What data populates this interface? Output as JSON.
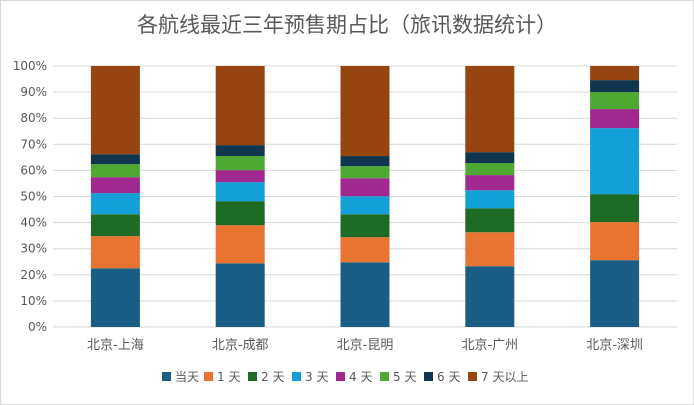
{
  "chart_data": {
    "type": "bar",
    "stacked": "percent",
    "title": "各航线最近三年预售期占比（旅讯数据统计）",
    "xlabel": "",
    "ylabel": "",
    "ylim": [
      0,
      100
    ],
    "yticks": [
      "0%",
      "10%",
      "20%",
      "30%",
      "40%",
      "50%",
      "60%",
      "70%",
      "80%",
      "90%",
      "100%"
    ],
    "grid": true,
    "legend_position": "bottom",
    "categories": [
      "北京-上海",
      "北京-成都",
      "北京-昆明",
      "北京-广州",
      "北京-深圳"
    ],
    "series": [
      {
        "name": "当天",
        "color": "#1a5e85",
        "values": [
          22.5,
          24.4,
          24.8,
          23.3,
          25.6
        ]
      },
      {
        "name": "1 天",
        "color": "#e97432",
        "values": [
          12.3,
          14.6,
          9.6,
          13.0,
          14.6
        ]
      },
      {
        "name": "2 天",
        "color": "#1e6b25",
        "values": [
          8.4,
          9.2,
          8.8,
          9.2,
          10.7
        ]
      },
      {
        "name": "3 天",
        "color": "#12a0d6",
        "values": [
          8.1,
          7.3,
          6.9,
          6.9,
          25.3
        ]
      },
      {
        "name": "4 天",
        "color": "#a0288f",
        "values": [
          6.1,
          4.6,
          6.9,
          5.8,
          7.3
        ]
      },
      {
        "name": "5 天",
        "color": "#4ea832",
        "values": [
          5.0,
          5.4,
          4.6,
          4.6,
          6.5
        ]
      },
      {
        "name": "6 天",
        "color": "#10364f",
        "values": [
          3.8,
          4.2,
          3.9,
          4.2,
          4.6
        ]
      },
      {
        "name": "7 天以上",
        "color": "#974510",
        "values": [
          33.8,
          30.3,
          34.5,
          33.0,
          5.4
        ]
      }
    ]
  }
}
